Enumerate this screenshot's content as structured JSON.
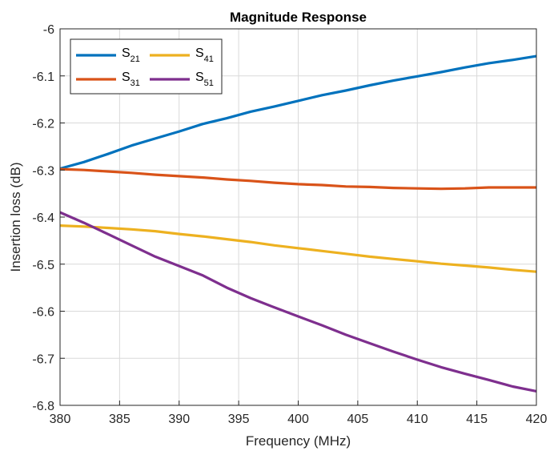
{
  "chart_data": {
    "type": "line",
    "title": "Magnitude Response",
    "xlabel": "Frequency (MHz)",
    "ylabel": "Insertion loss (dB)",
    "xlim": [
      380,
      420
    ],
    "ylim": [
      -6.8,
      -6.0
    ],
    "xticks": [
      380,
      385,
      390,
      395,
      400,
      405,
      410,
      415,
      420
    ],
    "yticks": [
      -6.8,
      -6.7,
      -6.6,
      -6.5,
      -6.4,
      -6.3,
      -6.2,
      -6.1,
      -6.0
    ],
    "xtick_labels": [
      "380",
      "385",
      "390",
      "395",
      "400",
      "405",
      "410",
      "415",
      "420"
    ],
    "ytick_labels": [
      "-6.8",
      "-6.7",
      "-6.6",
      "-6.5",
      "-6.4",
      "-6.3",
      "-6.2",
      "-6.1",
      "-6"
    ],
    "grid": true,
    "legend_location": "top-left",
    "series": [
      {
        "name": "S21",
        "label_base": "S",
        "label_sub": "21",
        "color": "#0072BD",
        "x": [
          380,
          382,
          384,
          386,
          388,
          390,
          392,
          394,
          396,
          398,
          400,
          402,
          404,
          406,
          408,
          410,
          412,
          414,
          416,
          418,
          420
        ],
        "y": [
          -6.297,
          -6.283,
          -6.266,
          -6.248,
          -6.233,
          -6.218,
          -6.202,
          -6.19,
          -6.176,
          -6.165,
          -6.153,
          -6.141,
          -6.131,
          -6.12,
          -6.11,
          -6.101,
          -6.092,
          -6.082,
          -6.073,
          -6.066,
          -6.058
        ]
      },
      {
        "name": "S31",
        "label_base": "S",
        "label_sub": "31",
        "color": "#D95319",
        "x": [
          380,
          382,
          384,
          386,
          388,
          390,
          392,
          394,
          396,
          398,
          400,
          402,
          404,
          406,
          408,
          410,
          412,
          414,
          416,
          418,
          420
        ],
        "y": [
          -6.298,
          -6.3,
          -6.303,
          -6.306,
          -6.31,
          -6.313,
          -6.316,
          -6.32,
          -6.323,
          -6.327,
          -6.33,
          -6.332,
          -6.335,
          -6.336,
          -6.338,
          -6.339,
          -6.34,
          -6.339,
          -6.337,
          -6.337,
          -6.337
        ]
      },
      {
        "name": "S41",
        "label_base": "S",
        "label_sub": "41",
        "color": "#EDB120",
        "x": [
          380,
          382,
          384,
          386,
          388,
          390,
          392,
          394,
          396,
          398,
          400,
          402,
          404,
          406,
          408,
          410,
          412,
          414,
          416,
          418,
          420
        ],
        "y": [
          -6.418,
          -6.42,
          -6.423,
          -6.426,
          -6.43,
          -6.436,
          -6.441,
          -6.447,
          -6.453,
          -6.46,
          -6.466,
          -6.472,
          -6.478,
          -6.484,
          -6.489,
          -6.494,
          -6.499,
          -6.503,
          -6.507,
          -6.512,
          -6.516
        ]
      },
      {
        "name": "S51",
        "label_base": "S",
        "label_sub": "51",
        "color": "#7E2F8E",
        "x": [
          380,
          382,
          384,
          386,
          388,
          390,
          392,
          394,
          396,
          398,
          400,
          402,
          404,
          406,
          408,
          410,
          412,
          414,
          416,
          418,
          420
        ],
        "y": [
          -6.39,
          -6.412,
          -6.436,
          -6.46,
          -6.484,
          -6.504,
          -6.524,
          -6.55,
          -6.572,
          -6.592,
          -6.611,
          -6.63,
          -6.65,
          -6.668,
          -6.686,
          -6.703,
          -6.719,
          -6.733,
          -6.746,
          -6.76,
          -6.77
        ]
      }
    ]
  }
}
